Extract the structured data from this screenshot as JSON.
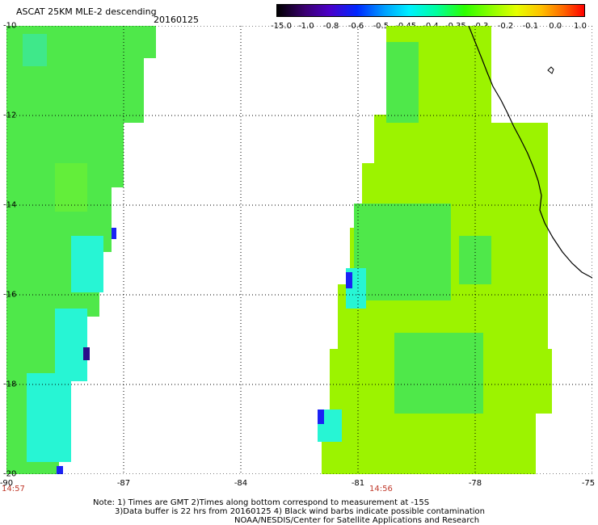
{
  "header": {
    "title": "ASCAT 25KM MLE-2 descending",
    "date": "20160125"
  },
  "colorbar": {
    "labels": [
      "-15.0",
      "-1.0",
      "-0.8",
      "-0.6",
      "-0.5",
      "-0.45",
      "-0.4",
      "-0.35",
      "-0.3",
      "-0.2",
      "-0.1",
      "0.0",
      "1.0"
    ]
  },
  "map": {
    "lat_labels": [
      "-10",
      "-12",
      "-14",
      "-16",
      "-18",
      "-20"
    ],
    "lon_labels": [
      "-90",
      "-87",
      "-84",
      "-81",
      "-78",
      "-75"
    ],
    "swath_times": [
      "14:57",
      "14:56"
    ],
    "colors": {
      "light_green": "#9cf300",
      "green": "#4fe84a",
      "cyan": "#27f5d4",
      "blue": "#1a22f5",
      "indigo": "#2a0f8a"
    }
  },
  "footer": {
    "line1": "Note: 1) Times are GMT 2)Times along bottom correspond to measurement at -15S",
    "line2": "3)Data buffer is 22 hrs from 20160125 4) Black wind barbs indicate possible contamination",
    "line3": "NOAA/NESDIS/Center for Satellite Applications and Research"
  }
}
